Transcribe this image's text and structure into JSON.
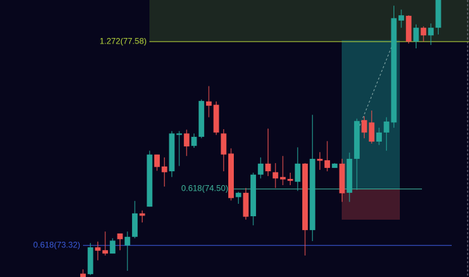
{
  "chart_data": {
    "type": "candlestick",
    "up_color": "#26a69a",
    "down_color": "#ef5350",
    "ylim": [
      72.66,
      78.45
    ],
    "open": [
      72.73,
      72.72,
      73.28,
      73.22,
      73.15,
      73.57,
      73.32,
      73.5,
      73.99,
      74.13,
      75.22,
      74.97,
      74.87,
      75.63,
      75.66,
      75.4,
      75.59,
      76.33,
      76.26,
      75.66,
      75.24,
      74.33,
      74.42,
      73.93,
      74.8,
      75.03,
      74.85,
      74.75,
      74.71,
      74.65,
      75.03,
      73.64,
      75.13,
      75.1,
      74.94,
      75.03,
      74.42,
      75.13,
      75.94,
      75.89,
      75.49,
      75.68,
      75.89,
      78.02,
      78.12,
      77.58,
      77.87,
      77.71,
      77.87
    ],
    "high": [
      72.82,
      73.37,
      73.4,
      73.61,
      73.47,
      73.57,
      73.61,
      74.25,
      74.05,
      75.3,
      75.22,
      75.16,
      75.71,
      75.71,
      75.74,
      75.66,
      76.37,
      76.65,
      76.33,
      75.75,
      75.35,
      74.44,
      74.52,
      74.84,
      75.16,
      75.76,
      75.04,
      75.19,
      74.84,
      75.37,
      75.04,
      76.05,
      75.27,
      75.5,
      75.04,
      75.13,
      75.26,
      75.97,
      76.02,
      76.14,
      75.78,
      76.0,
      78.33,
      78.25,
      78.13,
      77.94,
      77.9,
      77.96,
      78.45
    ],
    "low": [
      72.66,
      72.7,
      73.01,
      73.11,
      73.15,
      73.22,
      72.79,
      73.47,
      73.8,
      74.13,
      74.88,
      74.55,
      74.75,
      74.98,
      75.19,
      75.36,
      75.56,
      76.0,
      75.63,
      74.87,
      74.26,
      74.19,
      73.86,
      73.74,
      74.72,
      74.77,
      74.52,
      74.58,
      74.58,
      74.46,
      73.11,
      73.41,
      74.9,
      74.87,
      74.94,
      74.23,
      74.23,
      74.48,
      75.56,
      75.45,
      75.42,
      75.3,
      75.78,
      77.87,
      77.54,
      77.44,
      77.58,
      77.51,
      77.73
    ],
    "close": [
      72.66,
      73.28,
      73.21,
      73.15,
      73.42,
      73.45,
      73.5,
      73.99,
      73.94,
      75.22,
      74.96,
      74.85,
      75.66,
      75.66,
      75.39,
      75.59,
      76.34,
      76.24,
      75.68,
      75.22,
      74.31,
      74.42,
      73.92,
      74.8,
      75.03,
      74.87,
      74.72,
      74.7,
      74.67,
      75.03,
      73.64,
      75.13,
      75.09,
      74.94,
      75.03,
      74.41,
      75.13,
      75.92,
      75.68,
      75.49,
      75.68,
      75.91,
      78.07,
      78.13,
      77.58,
      77.87,
      77.71,
      77.87,
      78.45
    ],
    "annotations": [
      {
        "label": "1.272(77.58)",
        "value": 77.58,
        "color": "#b5d43b"
      },
      {
        "label": "0.618(74.50)",
        "value": 74.5,
        "color": "#3fb59c"
      },
      {
        "label": "0.618(73.32)",
        "value": 73.32,
        "color": "#3b5bdb"
      }
    ]
  }
}
